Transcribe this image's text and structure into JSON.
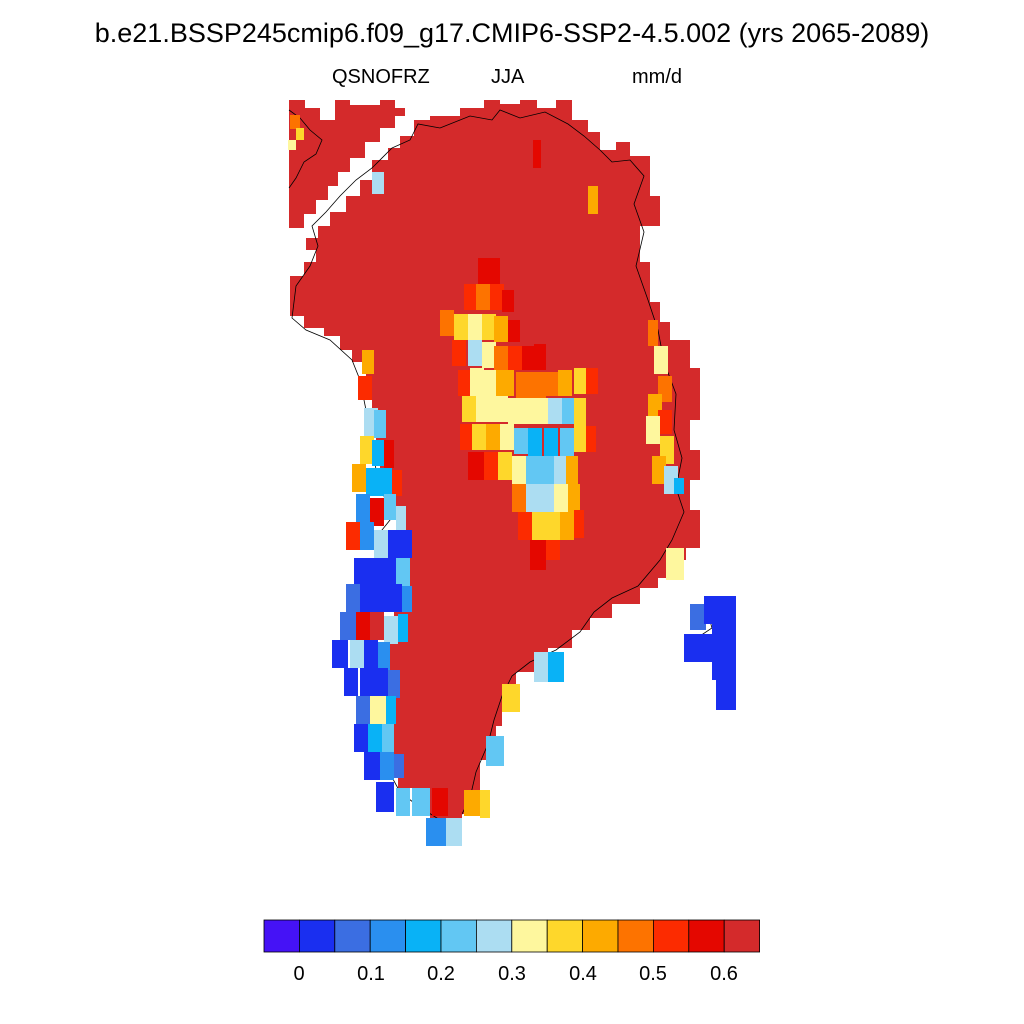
{
  "title": "b.e21.BSSP245cmip6.f09_g17.CMIP6-SSP2-4.5.002 (yrs 2065-2089)",
  "variable": "QSNOFRZ",
  "season": "JJA",
  "units": "mm/d",
  "colorbar": {
    "colors": [
      "#4512f6",
      "#1a2ff0",
      "#3b6ee2",
      "#2a8fef",
      "#09b2f6",
      "#62c7f3",
      "#acddf2",
      "#fef79e",
      "#fed72b",
      "#fdaa00",
      "#fd7300",
      "#fc2b00",
      "#e40700",
      "#d42a2b"
    ],
    "tick_labels": [
      "0",
      "0.1",
      "0.2",
      "0.3",
      "0.4",
      "0.5",
      "0.6"
    ]
  }
}
